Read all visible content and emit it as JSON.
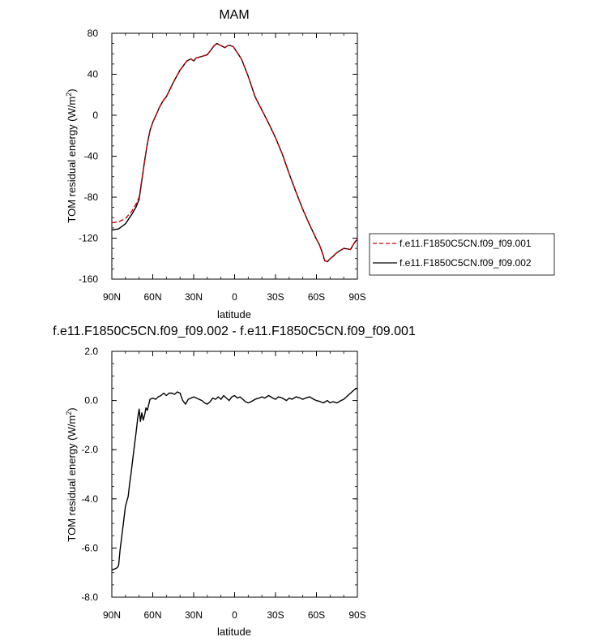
{
  "chart_data": [
    {
      "type": "line",
      "title": "MAM",
      "xlabel": "latitude",
      "ylabel": "TOM residual energy (W/m",
      "ylabel_sup": "2",
      "ylabel_tail": ")",
      "xlim": [
        90,
        -90
      ],
      "ylim": [
        -160,
        80
      ],
      "x_ticks": [
        90,
        60,
        30,
        0,
        -30,
        -60,
        -90
      ],
      "x_tick_labels": [
        "90N",
        "60N",
        "30N",
        "0",
        "30S",
        "60S",
        "90S"
      ],
      "y_ticks": [
        80,
        40,
        0,
        -40,
        -80,
        -120,
        -160
      ],
      "y_tick_labels": [
        "80",
        "40",
        "0",
        "-40",
        "-80",
        "-120",
        "-160"
      ],
      "legend_position": "right",
      "series": [
        {
          "name": "f.e11.F1850C5CN.f09_f09.001",
          "color": "#cc0000",
          "dash": "dashed",
          "x": [
            90,
            85,
            80,
            75,
            72,
            70,
            68,
            66,
            64,
            62,
            60,
            57,
            55,
            52,
            50,
            45,
            40,
            35,
            32,
            30,
            28,
            25,
            20,
            15,
            13,
            10,
            7,
            5,
            3,
            1,
            0,
            -5,
            -10,
            -15,
            -20,
            -25,
            -30,
            -35,
            -40,
            -45,
            -50,
            -55,
            -60,
            -62,
            -64,
            -65,
            -66,
            -68,
            -70,
            -72,
            -75,
            -80,
            -85,
            -88,
            -90
          ],
          "values": [
            -105,
            -104,
            -101,
            -93,
            -86,
            -80,
            -63,
            -45,
            -28,
            -15,
            -7,
            2,
            8,
            15,
            18,
            32,
            44,
            53,
            55,
            53,
            56,
            57,
            59,
            68,
            70,
            68,
            66,
            68,
            68,
            67,
            65,
            55,
            38,
            18,
            5,
            -8,
            -22,
            -38,
            -57,
            -75,
            -92,
            -107,
            -121,
            -126,
            -133,
            -137,
            -142,
            -143,
            -140,
            -138,
            -134,
            -130,
            -131,
            -124,
            -121
          ]
        },
        {
          "name": "f.e11.F1850C5CN.f09_f09.002",
          "color": "#000000",
          "dash": "solid",
          "x": [
            90,
            85,
            80,
            75,
            72,
            70,
            68,
            66,
            64,
            62,
            60,
            57,
            55,
            52,
            50,
            45,
            40,
            35,
            32,
            30,
            28,
            25,
            20,
            15,
            13,
            10,
            7,
            5,
            3,
            1,
            0,
            -5,
            -10,
            -15,
            -20,
            -25,
            -30,
            -35,
            -40,
            -45,
            -50,
            -55,
            -60,
            -62,
            -64,
            -65,
            -66,
            -68,
            -70,
            -72,
            -75,
            -80,
            -85,
            -88,
            -90
          ],
          "values": [
            -112,
            -111,
            -106,
            -96,
            -89,
            -82,
            -64,
            -45,
            -28,
            -15,
            -7,
            2,
            8,
            15,
            18,
            32,
            44,
            53,
            55,
            53,
            56,
            57,
            59,
            68,
            70,
            68,
            66,
            68,
            68,
            67,
            65,
            55,
            38,
            18,
            5,
            -8,
            -22,
            -38,
            -57,
            -75,
            -92,
            -107,
            -121,
            -126,
            -133,
            -137,
            -142,
            -143,
            -140,
            -138,
            -134,
            -130,
            -131,
            -124,
            -121
          ]
        }
      ]
    },
    {
      "type": "line",
      "title": "f.e11.F1850C5CN.f09_f09.002 - f.e11.F1850C5CN.f09_f09.001",
      "xlabel": "latitude",
      "ylabel": "TOM residual energy (W/m",
      "ylabel_sup": "2",
      "ylabel_tail": ")",
      "xlim": [
        90,
        -90
      ],
      "ylim": [
        -8,
        2
      ],
      "x_ticks": [
        90,
        60,
        30,
        0,
        -30,
        -60,
        -90
      ],
      "x_tick_labels": [
        "90N",
        "60N",
        "30N",
        "0",
        "30S",
        "60S",
        "90S"
      ],
      "y_ticks": [
        2,
        0,
        -2,
        -4,
        -6,
        -8
      ],
      "y_tick_labels": [
        "2.0",
        "0.0",
        "-2.0",
        "-4.0",
        "-6.0",
        "-8.0"
      ],
      "series": [
        {
          "color": "#000000",
          "dash": "solid",
          "x": [
            90,
            88,
            86,
            85,
            84,
            82,
            80,
            78,
            77,
            76,
            74,
            72,
            71,
            70,
            69,
            68,
            67,
            66,
            65,
            64,
            62,
            60,
            58,
            56,
            54,
            52,
            50,
            48,
            46,
            44,
            42,
            40,
            38,
            36,
            34,
            32,
            30,
            28,
            26,
            24,
            22,
            20,
            18,
            16,
            14,
            12,
            10,
            8,
            6,
            4,
            2,
            0,
            -2,
            -4,
            -6,
            -8,
            -10,
            -12,
            -15,
            -18,
            -20,
            -22,
            -25,
            -28,
            -30,
            -32,
            -35,
            -38,
            -40,
            -42,
            -45,
            -48,
            -50,
            -52,
            -55,
            -58,
            -60,
            -63,
            -65,
            -68,
            -70,
            -72,
            -75,
            -78,
            -80,
            -82,
            -85,
            -88,
            -90
          ],
          "values": [
            -6.9,
            -6.85,
            -6.8,
            -6.7,
            -6.1,
            -5.2,
            -4.3,
            -3.9,
            -3.4,
            -3.0,
            -2.1,
            -1.2,
            -0.7,
            -0.35,
            -0.85,
            -0.5,
            -0.8,
            -0.6,
            -0.3,
            -0.4,
            0.05,
            0.1,
            0.05,
            0.15,
            0.2,
            0.3,
            0.2,
            0.3,
            0.3,
            0.25,
            0.35,
            0.3,
            0.0,
            -0.15,
            0.05,
            0.1,
            0.15,
            0.1,
            0.05,
            0.0,
            -0.1,
            -0.15,
            -0.05,
            0.1,
            0.05,
            0.15,
            0.05,
            0.2,
            0.1,
            0.0,
            0.15,
            0.2,
            0.1,
            0.15,
            0.05,
            -0.05,
            -0.1,
            -0.05,
            0.05,
            0.1,
            0.15,
            0.1,
            0.2,
            0.1,
            0.05,
            0.15,
            0.1,
            0.0,
            0.1,
            0.05,
            0.15,
            0.1,
            0.05,
            0.1,
            0.15,
            0.05,
            0.0,
            -0.05,
            -0.1,
            0.0,
            -0.1,
            -0.05,
            -0.1,
            0.0,
            0.05,
            0.15,
            0.3,
            0.45,
            0.5
          ]
        }
      ]
    }
  ]
}
